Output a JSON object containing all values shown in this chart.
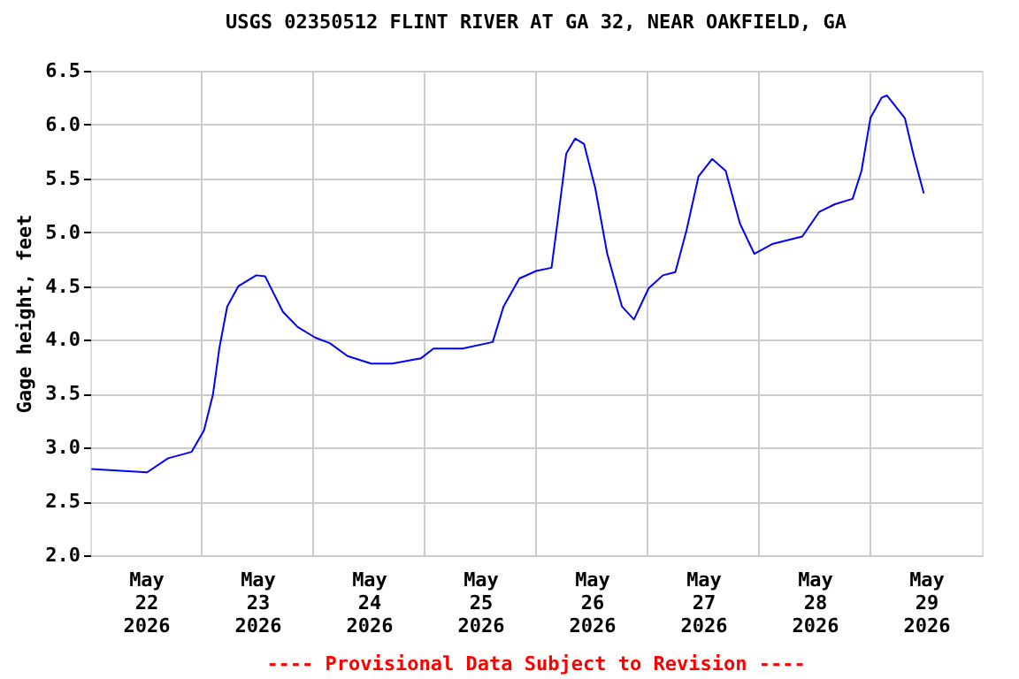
{
  "chart_data": {
    "type": "line",
    "title": "USGS 02350512 FLINT RIVER AT GA 32, NEAR OAKFIELD, GA",
    "ylabel": "Gage height, feet",
    "annotations": [
      "---- Provisional Data Subject to Revision ----"
    ],
    "x": [
      "2026-05-22T00:15",
      "2026-05-22T12:15",
      "2026-05-22T16:45",
      "2026-05-22T21:50",
      "2026-05-23T00:30",
      "2026-05-23T02:25",
      "2026-05-23T03:50",
      "2026-05-23T05:30",
      "2026-05-23T07:55",
      "2026-05-23T11:45",
      "2026-05-23T13:40",
      "2026-05-23T17:30",
      "2026-05-23T20:40",
      "2026-05-24T00:30",
      "2026-05-24T03:35",
      "2026-05-24T07:25",
      "2026-05-24T12:30",
      "2026-05-24T17:00",
      "2026-05-24T23:15",
      "2026-05-25T01:55",
      "2026-05-25T08:10",
      "2026-05-25T14:40",
      "2026-05-25T17:00",
      "2026-05-25T20:25",
      "2026-05-26T00:00",
      "2026-05-26T03:20",
      "2026-05-26T04:35",
      "2026-05-26T06:30",
      "2026-05-26T08:25",
      "2026-05-26T10:20",
      "2026-05-26T12:45",
      "2026-05-26T15:20",
      "2026-05-26T18:30",
      "2026-05-26T21:05",
      "2026-05-27T00:15",
      "2026-05-27T03:20",
      "2026-05-27T06:00",
      "2026-05-27T08:25",
      "2026-05-27T11:00",
      "2026-05-27T13:55",
      "2026-05-27T16:50",
      "2026-05-27T19:55",
      "2026-05-27T23:00",
      "2026-05-28T02:50",
      "2026-05-28T09:20",
      "2026-05-28T13:00",
      "2026-05-28T16:20",
      "2026-05-28T20:10",
      "2026-05-28T22:05",
      "2026-05-29T00:00",
      "2026-05-29T02:25",
      "2026-05-29T03:35",
      "2026-05-29T07:25",
      "2026-05-29T09:20",
      "2026-05-29T11:30"
    ],
    "series": [
      {
        "color": "#0000ff",
        "values": [
          2.8,
          2.77,
          2.9,
          2.96,
          3.16,
          3.49,
          3.93,
          4.31,
          4.5,
          4.6,
          4.59,
          4.26,
          4.12,
          4.02,
          3.97,
          3.85,
          3.78,
          3.78,
          3.83,
          3.92,
          3.92,
          3.98,
          4.31,
          4.57,
          4.64,
          4.67,
          5.08,
          5.73,
          5.87,
          5.82,
          5.41,
          4.8,
          4.31,
          4.19,
          4.48,
          4.6,
          4.63,
          5.02,
          5.52,
          5.68,
          5.57,
          5.08,
          4.8,
          4.89,
          4.96,
          5.19,
          5.26,
          5.31,
          5.57,
          6.06,
          6.25,
          6.27,
          6.06,
          5.71,
          5.36
        ]
      }
    ],
    "xlim": [
      "2026-05-22T00:00",
      "2026-05-30T00:00"
    ],
    "xticks": [
      {
        "value": "2026-05-22T12:00",
        "label": "May 22 2026"
      },
      {
        "value": "2026-05-23T00:00",
        "label": null
      },
      {
        "value": "2026-05-23T12:00",
        "label": "May 23 2026"
      },
      {
        "value": "2026-05-24T00:00",
        "label": null
      },
      {
        "value": "2026-05-24T12:00",
        "label": "May 24 2026"
      },
      {
        "value": "2026-05-25T00:00",
        "label": null
      },
      {
        "value": "2026-05-25T12:00",
        "label": "May 25 2026"
      },
      {
        "value": "2026-05-26T00:00",
        "label": null
      },
      {
        "value": "2026-05-26T12:00",
        "label": "May 26 2026"
      },
      {
        "value": "2026-05-27T00:00",
        "label": null
      },
      {
        "value": "2026-05-27T12:00",
        "label": "May 27 2026"
      },
      {
        "value": "2026-05-28T00:00",
        "label": null
      },
      {
        "value": "2026-05-28T12:00",
        "label": "May 28 2026"
      },
      {
        "value": "2026-05-29T00:00",
        "label": null
      },
      {
        "value": "2026-05-29T12:00",
        "label": "May 29 2026"
      }
    ],
    "ylim": [
      2.0,
      6.5
    ],
    "yticks": [
      {
        "value": 2.0,
        "label": "2.0"
      },
      {
        "value": 2.5,
        "label": "2.5"
      },
      {
        "value": 3.0,
        "label": "3.0"
      },
      {
        "value": 3.5,
        "label": "3.5"
      },
      {
        "value": 4.0,
        "label": "4.0"
      },
      {
        "value": 4.5,
        "label": "4.5"
      },
      {
        "value": 5.0,
        "label": "5.0"
      },
      {
        "value": 5.5,
        "label": "5.5"
      },
      {
        "value": 6.0,
        "label": "6.0"
      },
      {
        "value": 6.5,
        "label": "6.5"
      }
    ],
    "grid": true,
    "marker": "none",
    "line_style": "solid"
  }
}
